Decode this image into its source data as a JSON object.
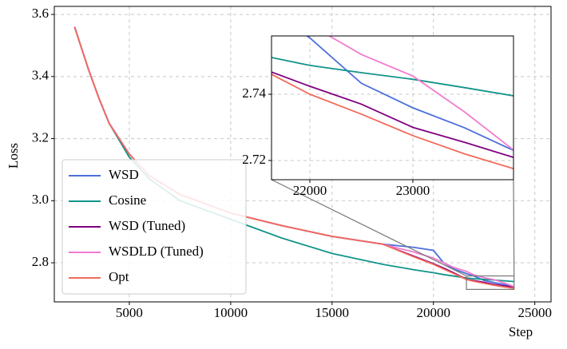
{
  "chart_data": [
    {
      "type": "line",
      "xlabel": "Step",
      "ylabel": "Loss",
      "x": [
        2300,
        2600,
        3000,
        3500,
        4000,
        5000,
        6000,
        7500,
        10000,
        12500,
        15000,
        17500,
        19000,
        20000,
        20500,
        21000,
        21628,
        22000,
        22500,
        23000,
        23500,
        24000
      ],
      "series": [
        {
          "name": "WSD",
          "color": "#4c6fdb",
          "values": [
            3.56,
            3.5,
            3.42,
            3.33,
            3.25,
            3.15,
            3.08,
            3.02,
            2.96,
            2.92,
            2.885,
            2.86,
            2.85,
            2.84,
            2.8,
            2.78,
            2.765,
            2.757,
            2.7433,
            2.7359,
            2.7299,
            2.7227
          ]
        },
        {
          "name": "Cosine",
          "color": "#12948a",
          "values": [
            3.56,
            3.5,
            3.42,
            3.33,
            3.25,
            3.14,
            3.07,
            3.0,
            2.94,
            2.88,
            2.83,
            2.795,
            2.778,
            2.768,
            2.762,
            2.757,
            2.7511,
            2.7487,
            2.7465,
            2.7445,
            2.742,
            2.7394
          ]
        },
        {
          "name": "WSD (Tuned)",
          "color": "#800080",
          "values": [
            3.56,
            3.5,
            3.42,
            3.33,
            3.25,
            3.15,
            3.08,
            3.02,
            2.96,
            2.92,
            2.885,
            2.86,
            2.822,
            2.797,
            2.783,
            2.768,
            2.7467,
            2.7424,
            2.737,
            2.73,
            2.7255,
            2.7207
          ]
        },
        {
          "name": "WSDLD (Tuned)",
          "color": "#f27bd0",
          "values": [
            3.56,
            3.5,
            3.42,
            3.33,
            3.25,
            3.15,
            3.08,
            3.02,
            2.96,
            2.92,
            2.885,
            2.86,
            2.835,
            2.815,
            2.8,
            2.785,
            2.772,
            2.761,
            2.752,
            2.7455,
            2.7347,
            2.7226
          ]
        },
        {
          "name": "Opt",
          "color": "#f26b5b",
          "values": [
            3.56,
            3.5,
            3.42,
            3.33,
            3.25,
            3.15,
            3.08,
            3.02,
            2.96,
            2.92,
            2.885,
            2.86,
            2.82,
            2.795,
            2.78,
            2.765,
            2.746,
            2.74,
            2.734,
            2.7275,
            2.722,
            2.7173
          ]
        }
      ],
      "xlim": [
        1300,
        25800
      ],
      "ylim": [
        2.674,
        3.626
      ],
      "xticks": [
        5000,
        10000,
        15000,
        20000,
        25000
      ],
      "yticks": [
        2.8,
        {
          "value": 3,
          "label": "3.0"
        },
        3.2,
        3.4,
        3.6
      ],
      "grid": true,
      "legend": "lower left"
    },
    {
      "type": "line",
      "xlim": [
        21628,
        23977
      ],
      "ylim": [
        2.7142,
        2.7576
      ],
      "xticks": [
        22000,
        23000
      ],
      "yticks": [
        2.72,
        2.74
      ],
      "grid": true
    }
  ]
}
